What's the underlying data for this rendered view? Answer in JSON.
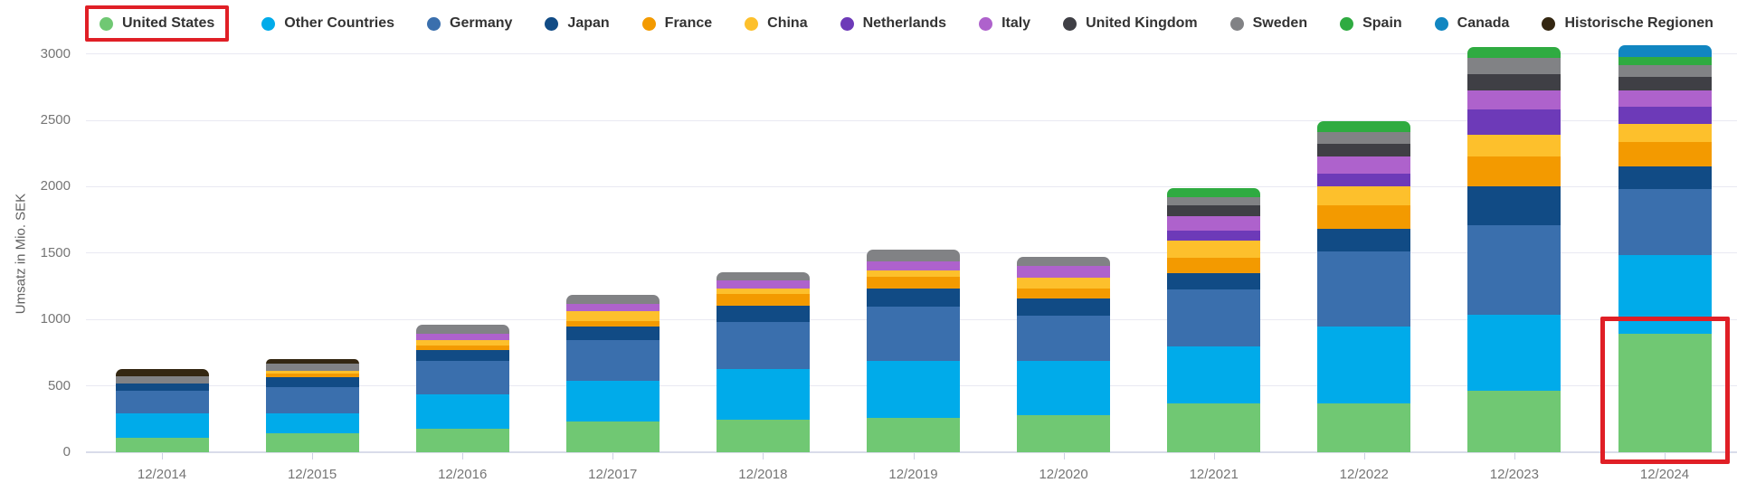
{
  "y_axis": {
    "title": "Umsatz in Mio. SEK",
    "ticks": [
      0,
      500,
      1000,
      1500,
      2000,
      2500,
      3000
    ]
  },
  "chart_data": {
    "type": "bar",
    "stacked": true,
    "title": "",
    "xlabel": "",
    "ylabel": "Umsatz in Mio. SEK",
    "ylim": [
      0,
      3000
    ],
    "grid": true,
    "legend_position": "top",
    "categories": [
      "12/2014",
      "12/2015",
      "12/2016",
      "12/2017",
      "12/2018",
      "12/2019",
      "12/2020",
      "12/2021",
      "12/2022",
      "12/2023",
      "12/2024"
    ],
    "series": [
      {
        "name": "United States",
        "color": "#70c873",
        "values": [
          110,
          140,
          175,
          230,
          245,
          260,
          280,
          365,
          370,
          465,
          895
        ]
      },
      {
        "name": "Other Countries",
        "color": "#00abea",
        "values": [
          180,
          150,
          260,
          310,
          385,
          430,
          410,
          435,
          580,
          570,
          590
        ]
      },
      {
        "name": "Germany",
        "color": "#3a6fad",
        "values": [
          175,
          200,
          250,
          305,
          350,
          410,
          340,
          425,
          560,
          675,
          495
        ]
      },
      {
        "name": "Japan",
        "color": "#114b85",
        "values": [
          55,
          75,
          85,
          105,
          125,
          135,
          125,
          125,
          175,
          290,
          175
        ]
      },
      {
        "name": "France",
        "color": "#f39a00",
        "values": [
          0,
          25,
          35,
          40,
          85,
          85,
          80,
          115,
          175,
          225,
          180
        ]
      },
      {
        "name": "China",
        "color": "#fdc02c",
        "values": [
          0,
          25,
          40,
          70,
          40,
          50,
          80,
          130,
          145,
          165,
          140
        ]
      },
      {
        "name": "Netherlands",
        "color": "#6d3ab8",
        "values": [
          0,
          0,
          0,
          0,
          0,
          0,
          0,
          75,
          90,
          195,
          130
        ]
      },
      {
        "name": "Italy",
        "color": "#ae62cc",
        "values": [
          0,
          0,
          45,
          55,
          65,
          70,
          90,
          110,
          135,
          140,
          120
        ]
      },
      {
        "name": "United Kingdom",
        "color": "#3f3f45",
        "values": [
          0,
          0,
          0,
          0,
          0,
          0,
          0,
          80,
          90,
          125,
          105
        ]
      },
      {
        "name": "Sweden",
        "color": "#818285",
        "values": [
          50,
          50,
          70,
          70,
          60,
          85,
          65,
          60,
          90,
          120,
          85
        ]
      },
      {
        "name": "Spain",
        "color": "#2fab41",
        "values": [
          0,
          0,
          0,
          0,
          0,
          0,
          0,
          70,
          80,
          80,
          65
        ]
      },
      {
        "name": "Canada",
        "color": "#1186c1",
        "values": [
          0,
          0,
          0,
          0,
          0,
          0,
          0,
          0,
          0,
          0,
          85
        ]
      },
      {
        "name": "Historische Regionen",
        "color": "#342712",
        "values": [
          55,
          35,
          0,
          0,
          0,
          0,
          0,
          0,
          0,
          0,
          0
        ]
      }
    ]
  },
  "annotations": {
    "highlight_color": "#e01f26",
    "legend_highlight": "United States",
    "bar_highlight": {
      "category": "12/2024",
      "series": "United States"
    }
  }
}
